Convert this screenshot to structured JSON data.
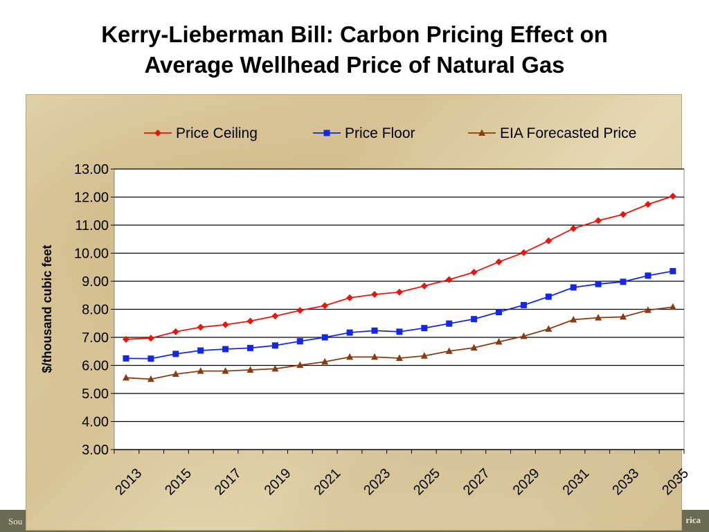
{
  "slide": {
    "title_line1": "Kerry-Lieberman Bill: Carbon Pricing Effect on",
    "title_line2": "Average Wellhead Price of Natural Gas",
    "footer_left": "Sou",
    "footer_right": "rica"
  },
  "chart_data": {
    "type": "line",
    "title": "",
    "ylabel": "$/thousand cubic feet",
    "xlabel": "",
    "ylim": [
      3,
      13
    ],
    "y_ticks": [
      "3.00",
      "4.00",
      "5.00",
      "6.00",
      "7.00",
      "8.00",
      "9.00",
      "10.00",
      "11.00",
      "12.00",
      "13.00"
    ],
    "x": [
      2013,
      2014,
      2015,
      2016,
      2017,
      2018,
      2019,
      2020,
      2021,
      2022,
      2023,
      2024,
      2025,
      2026,
      2027,
      2028,
      2029,
      2030,
      2031,
      2032,
      2033,
      2034,
      2035
    ],
    "x_tick_labels": [
      "2013",
      "2015",
      "2017",
      "2019",
      "2021",
      "2023",
      "2025",
      "2027",
      "2029",
      "2031",
      "2033",
      "2035"
    ],
    "grid": "horizontal",
    "legend_position": "top",
    "series": [
      {
        "name": "Price Ceiling",
        "color": "#e8160c",
        "marker": "diamond",
        "values": [
          6.93,
          6.97,
          7.2,
          7.36,
          7.45,
          7.58,
          7.76,
          7.96,
          8.13,
          8.41,
          8.53,
          8.61,
          8.83,
          9.06,
          9.32,
          9.69,
          10.02,
          10.44,
          10.88,
          11.16,
          11.38,
          11.74,
          12.03
        ]
      },
      {
        "name": "Price Floor",
        "color": "#1426e6",
        "marker": "square",
        "values": [
          6.25,
          6.24,
          6.41,
          6.53,
          6.58,
          6.62,
          6.71,
          6.86,
          7.0,
          7.17,
          7.24,
          7.2,
          7.33,
          7.49,
          7.65,
          7.9,
          8.15,
          8.45,
          8.78,
          8.9,
          8.98,
          9.2,
          9.36
        ]
      },
      {
        "name": "EIA Forecasted Price",
        "color": "#8a3a10",
        "marker": "triangle",
        "values": [
          5.56,
          5.51,
          5.69,
          5.8,
          5.8,
          5.84,
          5.88,
          6.01,
          6.13,
          6.3,
          6.3,
          6.26,
          6.34,
          6.51,
          6.63,
          6.84,
          7.04,
          7.3,
          7.63,
          7.7,
          7.73,
          7.97,
          8.08
        ]
      }
    ]
  }
}
